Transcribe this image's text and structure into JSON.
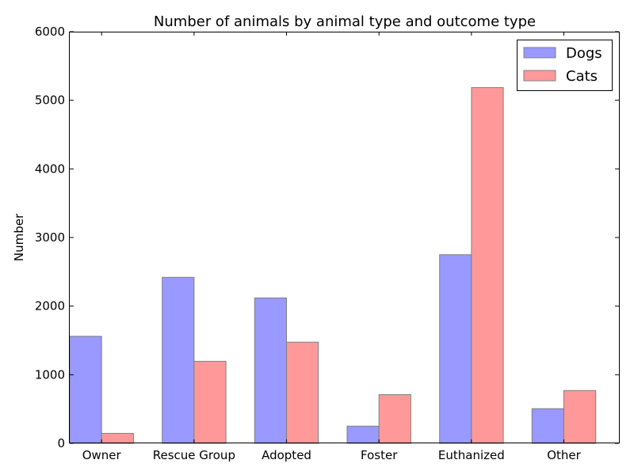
{
  "chart_data": {
    "type": "bar",
    "title": "Number of animals by animal type and outcome type",
    "xlabel": "",
    "ylabel": "Number",
    "categories": [
      "Owner",
      "Rescue Group",
      "Adopted",
      "Foster",
      "Euthanized",
      "Other"
    ],
    "series": [
      {
        "name": "Dogs",
        "values": [
          1560,
          2420,
          2120,
          250,
          2750,
          505
        ],
        "color": "#9999ff"
      },
      {
        "name": "Cats",
        "values": [
          145,
          1195,
          1475,
          710,
          5185,
          770
        ],
        "color": "#ff9999"
      }
    ],
    "ylim": [
      0,
      6000
    ],
    "yticks": [
      "0",
      "1000",
      "2000",
      "3000",
      "4000",
      "5000",
      "6000"
    ],
    "grid": false,
    "legend_position": "top-right"
  }
}
